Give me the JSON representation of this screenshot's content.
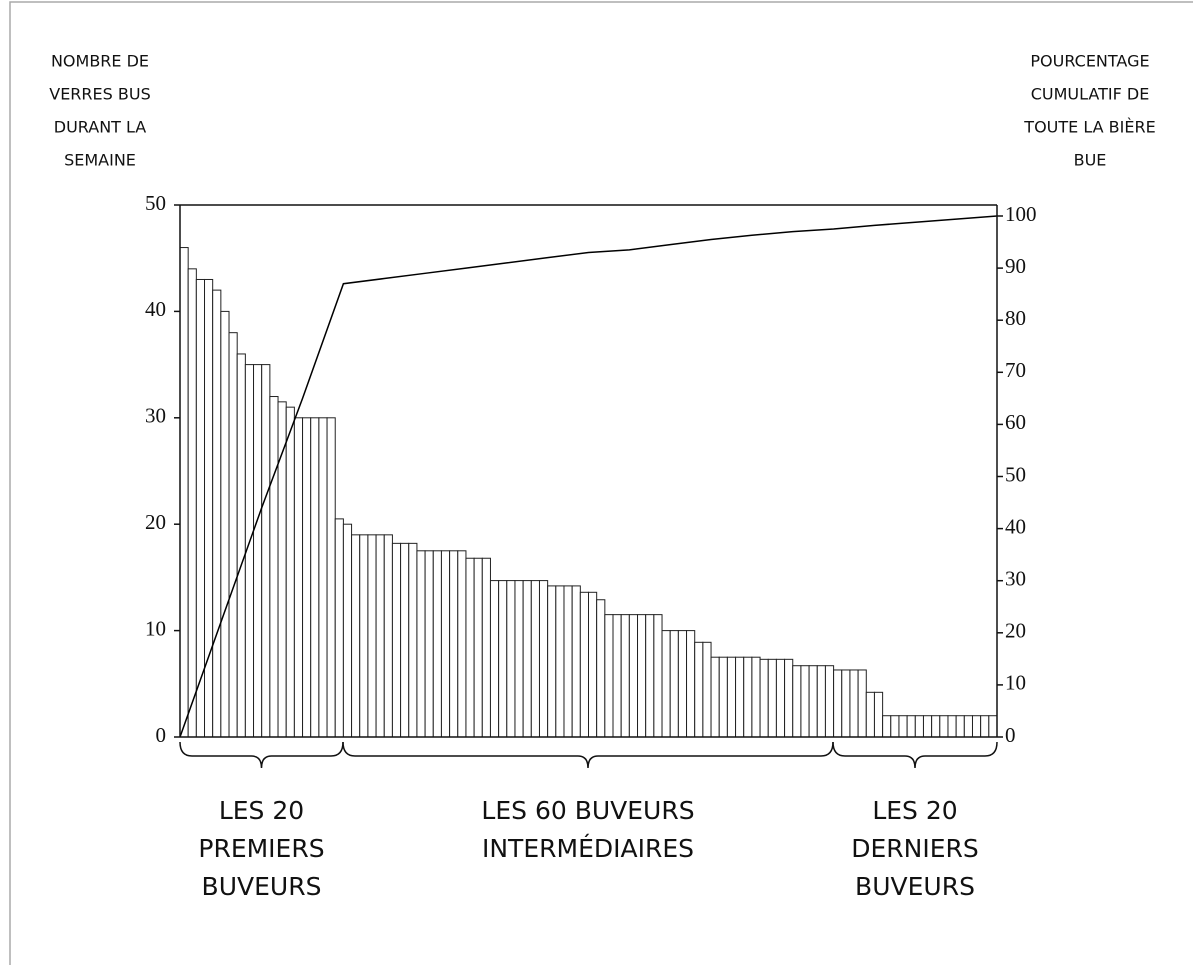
{
  "chart_data": {
    "type": "bar",
    "ylabel_lines": [
      "NOMBRE DE",
      "VERRES BUS",
      "DURANT LA",
      "SEMAINE"
    ],
    "y2label_lines": [
      "POURCENTAGE",
      "CUMULATIF DE",
      "TOUTE LA BIÈRE",
      "BUE"
    ],
    "xlim": [
      0,
      100
    ],
    "ylim": [
      0,
      50
    ],
    "yticks": [
      0,
      10,
      20,
      30,
      40,
      50
    ],
    "y2lim": [
      0,
      100
    ],
    "y2ticks": [
      0,
      10,
      20,
      30,
      40,
      50,
      60,
      70,
      80,
      90,
      100
    ],
    "series": [
      {
        "type": "bar",
        "color": "#ffffff",
        "values": [
          46,
          44,
          43,
          43,
          42,
          40,
          38,
          36,
          35,
          35,
          35,
          32,
          31.5,
          31,
          30,
          30,
          30,
          30,
          30,
          20.5,
          20,
          19,
          19,
          19,
          19,
          19,
          18.2,
          18.2,
          18.2,
          17.5,
          17.5,
          17.5,
          17.5,
          17.5,
          17.5,
          16.8,
          16.8,
          16.8,
          14.7,
          14.7,
          14.7,
          14.7,
          14.7,
          14.7,
          14.7,
          14.2,
          14.2,
          14.2,
          14.2,
          13.6,
          13.6,
          12.9,
          11.5,
          11.5,
          11.5,
          11.5,
          11.5,
          11.5,
          11.5,
          10,
          10,
          10,
          10,
          8.9,
          8.9,
          7.5,
          7.5,
          7.5,
          7.5,
          7.5,
          7.5,
          7.3,
          7.3,
          7.3,
          7.3,
          6.7,
          6.7,
          6.7,
          6.7,
          6.7,
          6.3,
          6.3,
          6.3,
          6.3,
          4.2,
          4.2,
          2,
          2,
          2,
          2,
          2,
          2,
          2,
          2,
          2,
          2,
          2,
          2,
          2,
          2
        ]
      },
      {
        "type": "line",
        "axis": "y2",
        "color": "#000000",
        "x": [
          0,
          5,
          10,
          15,
          20,
          25,
          30,
          35,
          40,
          45,
          50,
          55,
          60,
          65,
          70,
          75,
          80,
          85,
          90,
          95,
          100
        ],
        "values": [
          0,
          22,
          44,
          65,
          87,
          88,
          89,
          90,
          91,
          92,
          93,
          93.5,
          94.5,
          95.5,
          96.3,
          97,
          97.5,
          98.2,
          98.8,
          99.4,
          100
        ]
      }
    ],
    "groups": [
      {
        "lines": [
          "LES 20",
          "PREMIERS",
          "BUVEURS"
        ]
      },
      {
        "lines": [
          "LES 60 BUVEURS",
          "INTERMÉDIAIRES"
        ]
      },
      {
        "lines": [
          "LES 20",
          "DERNIERS",
          "BUVEURS"
        ]
      }
    ]
  }
}
